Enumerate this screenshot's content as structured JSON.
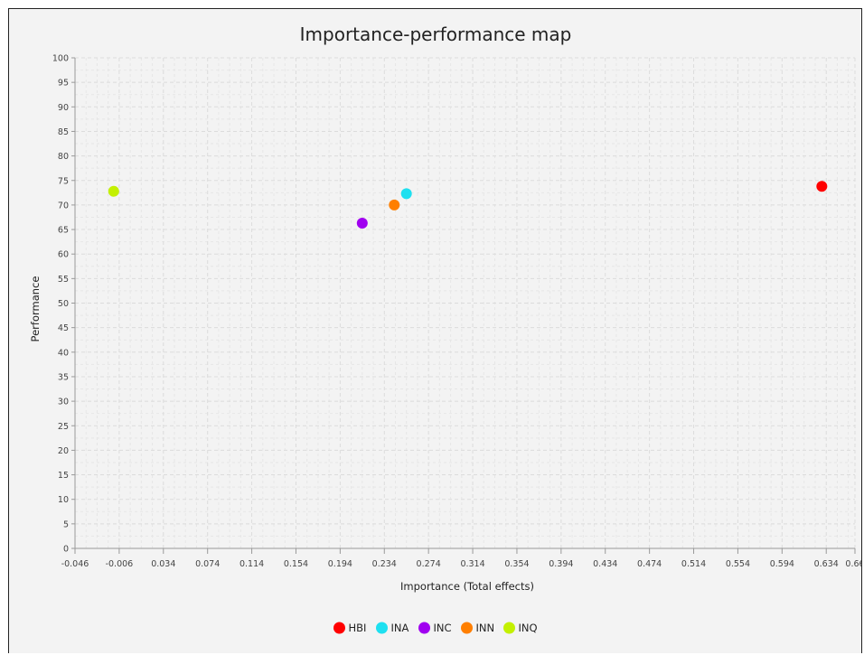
{
  "chart_data": {
    "type": "scatter",
    "title": "Importance-performance map",
    "xlabel": "Importance (Total effects)",
    "ylabel": "Performance",
    "xlim": [
      -0.046,
      0.66
    ],
    "ylim": [
      0,
      100
    ],
    "x_ticks": [
      "-0.046",
      "-0.006",
      "0.034",
      "0.074",
      "0.114",
      "0.154",
      "0.194",
      "0.234",
      "0.274",
      "0.314",
      "0.354",
      "0.394",
      "0.434",
      "0.474",
      "0.514",
      "0.554",
      "0.594",
      "0.634",
      "0.66"
    ],
    "y_ticks": [
      "0",
      "5",
      "10",
      "15",
      "20",
      "25",
      "30",
      "35",
      "40",
      "45",
      "50",
      "55",
      "60",
      "65",
      "70",
      "75",
      "80",
      "85",
      "90",
      "95",
      "100"
    ],
    "grid": true,
    "legend_position": "bottom",
    "series": [
      {
        "name": "HBI",
        "color": "#ff0000",
        "x": 0.63,
        "y": 73.8
      },
      {
        "name": "INA",
        "color": "#1ee0f0",
        "x": 0.254,
        "y": 72.3
      },
      {
        "name": "INC",
        "color": "#a000f0",
        "x": 0.214,
        "y": 66.3
      },
      {
        "name": "INN",
        "color": "#ff7f00",
        "x": 0.243,
        "y": 70.0
      },
      {
        "name": "INQ",
        "color": "#c3f000",
        "x": -0.011,
        "y": 72.8
      }
    ]
  }
}
